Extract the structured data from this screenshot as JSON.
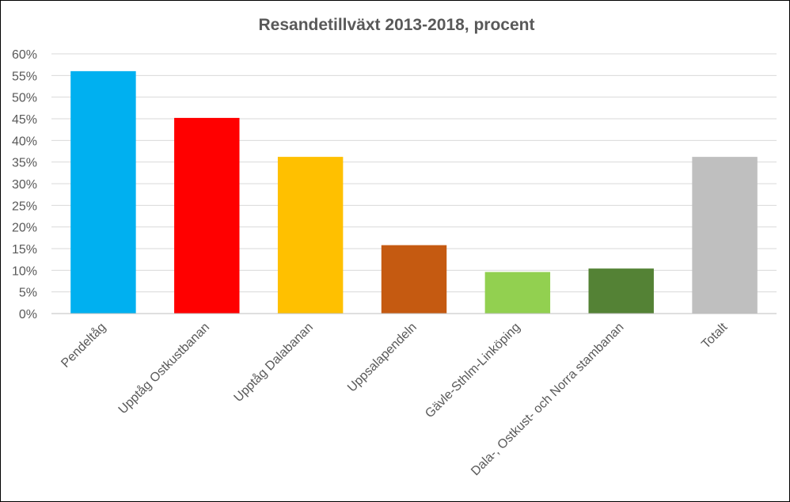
{
  "chart_data": {
    "type": "bar",
    "title": "Resandetillväxt 2013-2018, procent",
    "xlabel": "",
    "ylabel": "",
    "ylim": [
      0,
      60
    ],
    "y_tick_step": 5,
    "y_tick_suffix": "%",
    "grid": true,
    "legend": "none",
    "categories": [
      "Pendeltåg",
      "Upptåg Ostkustbanan",
      "Upptåg Dalabanan",
      "Uppsalapendeln",
      "Gävle-Sthlm-Linköping",
      "Dala-, Ostkust- och Norra stambanan",
      "Totalt"
    ],
    "values": [
      56,
      45.2,
      36.2,
      15.8,
      9.6,
      10.4,
      36.2
    ],
    "colors": [
      "#00b0f0",
      "#ff0000",
      "#ffc000",
      "#c55a11",
      "#92d050",
      "#548235",
      "#bfbfbf"
    ]
  }
}
